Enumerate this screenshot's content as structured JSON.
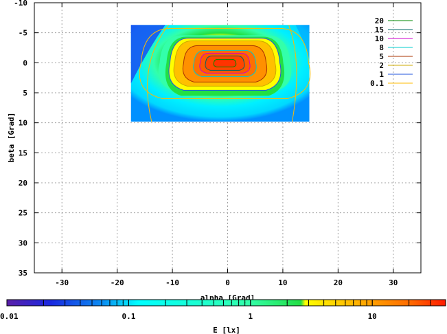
{
  "chart_data": {
    "type": "heatmap",
    "xlabel": "alpha [Grad]",
    "ylabel": "beta [Grad]",
    "xlim": [
      -35,
      35
    ],
    "ylim": [
      35,
      -10
    ],
    "x_ticks": [
      "-30",
      "-20",
      "-10",
      "0",
      "10",
      "20",
      "30"
    ],
    "x_tick_values": [
      -30,
      -20,
      -10,
      0,
      10,
      20,
      30
    ],
    "y_ticks": [
      "-10",
      "-5",
      "0",
      "5",
      "10",
      "15",
      "20",
      "25",
      "30",
      "35"
    ],
    "y_tick_values": [
      -10,
      -5,
      0,
      5,
      10,
      15,
      20,
      25,
      30,
      35
    ],
    "grid": true,
    "heatmap_extent": {
      "x": [
        -17.5,
        14.8
      ],
      "y": [
        -6.3,
        9.8
      ]
    },
    "contour_legend": {
      "placement": "top-right",
      "entries": [
        {
          "label": "20",
          "color": "#008800"
        },
        {
          "label": "15",
          "color": "#006666"
        },
        {
          "label": "10",
          "color": "#cc00cc"
        },
        {
          "label": "8",
          "color": "#00cccc"
        },
        {
          "label": "5",
          "color": "#aa3300"
        },
        {
          "label": "2",
          "color": "#ccaa00"
        },
        {
          "label": "1",
          "color": "#2255dd"
        },
        {
          "label": "0.1",
          "color": "#ffbb00"
        }
      ]
    },
    "colorbar": {
      "label": "E [lx]",
      "scale": "log",
      "range": [
        0.01,
        40
      ],
      "tick_labels": [
        "0.01",
        "0.1",
        "1",
        "10"
      ],
      "tick_values": [
        0.01,
        0.1,
        1,
        10
      ]
    }
  }
}
